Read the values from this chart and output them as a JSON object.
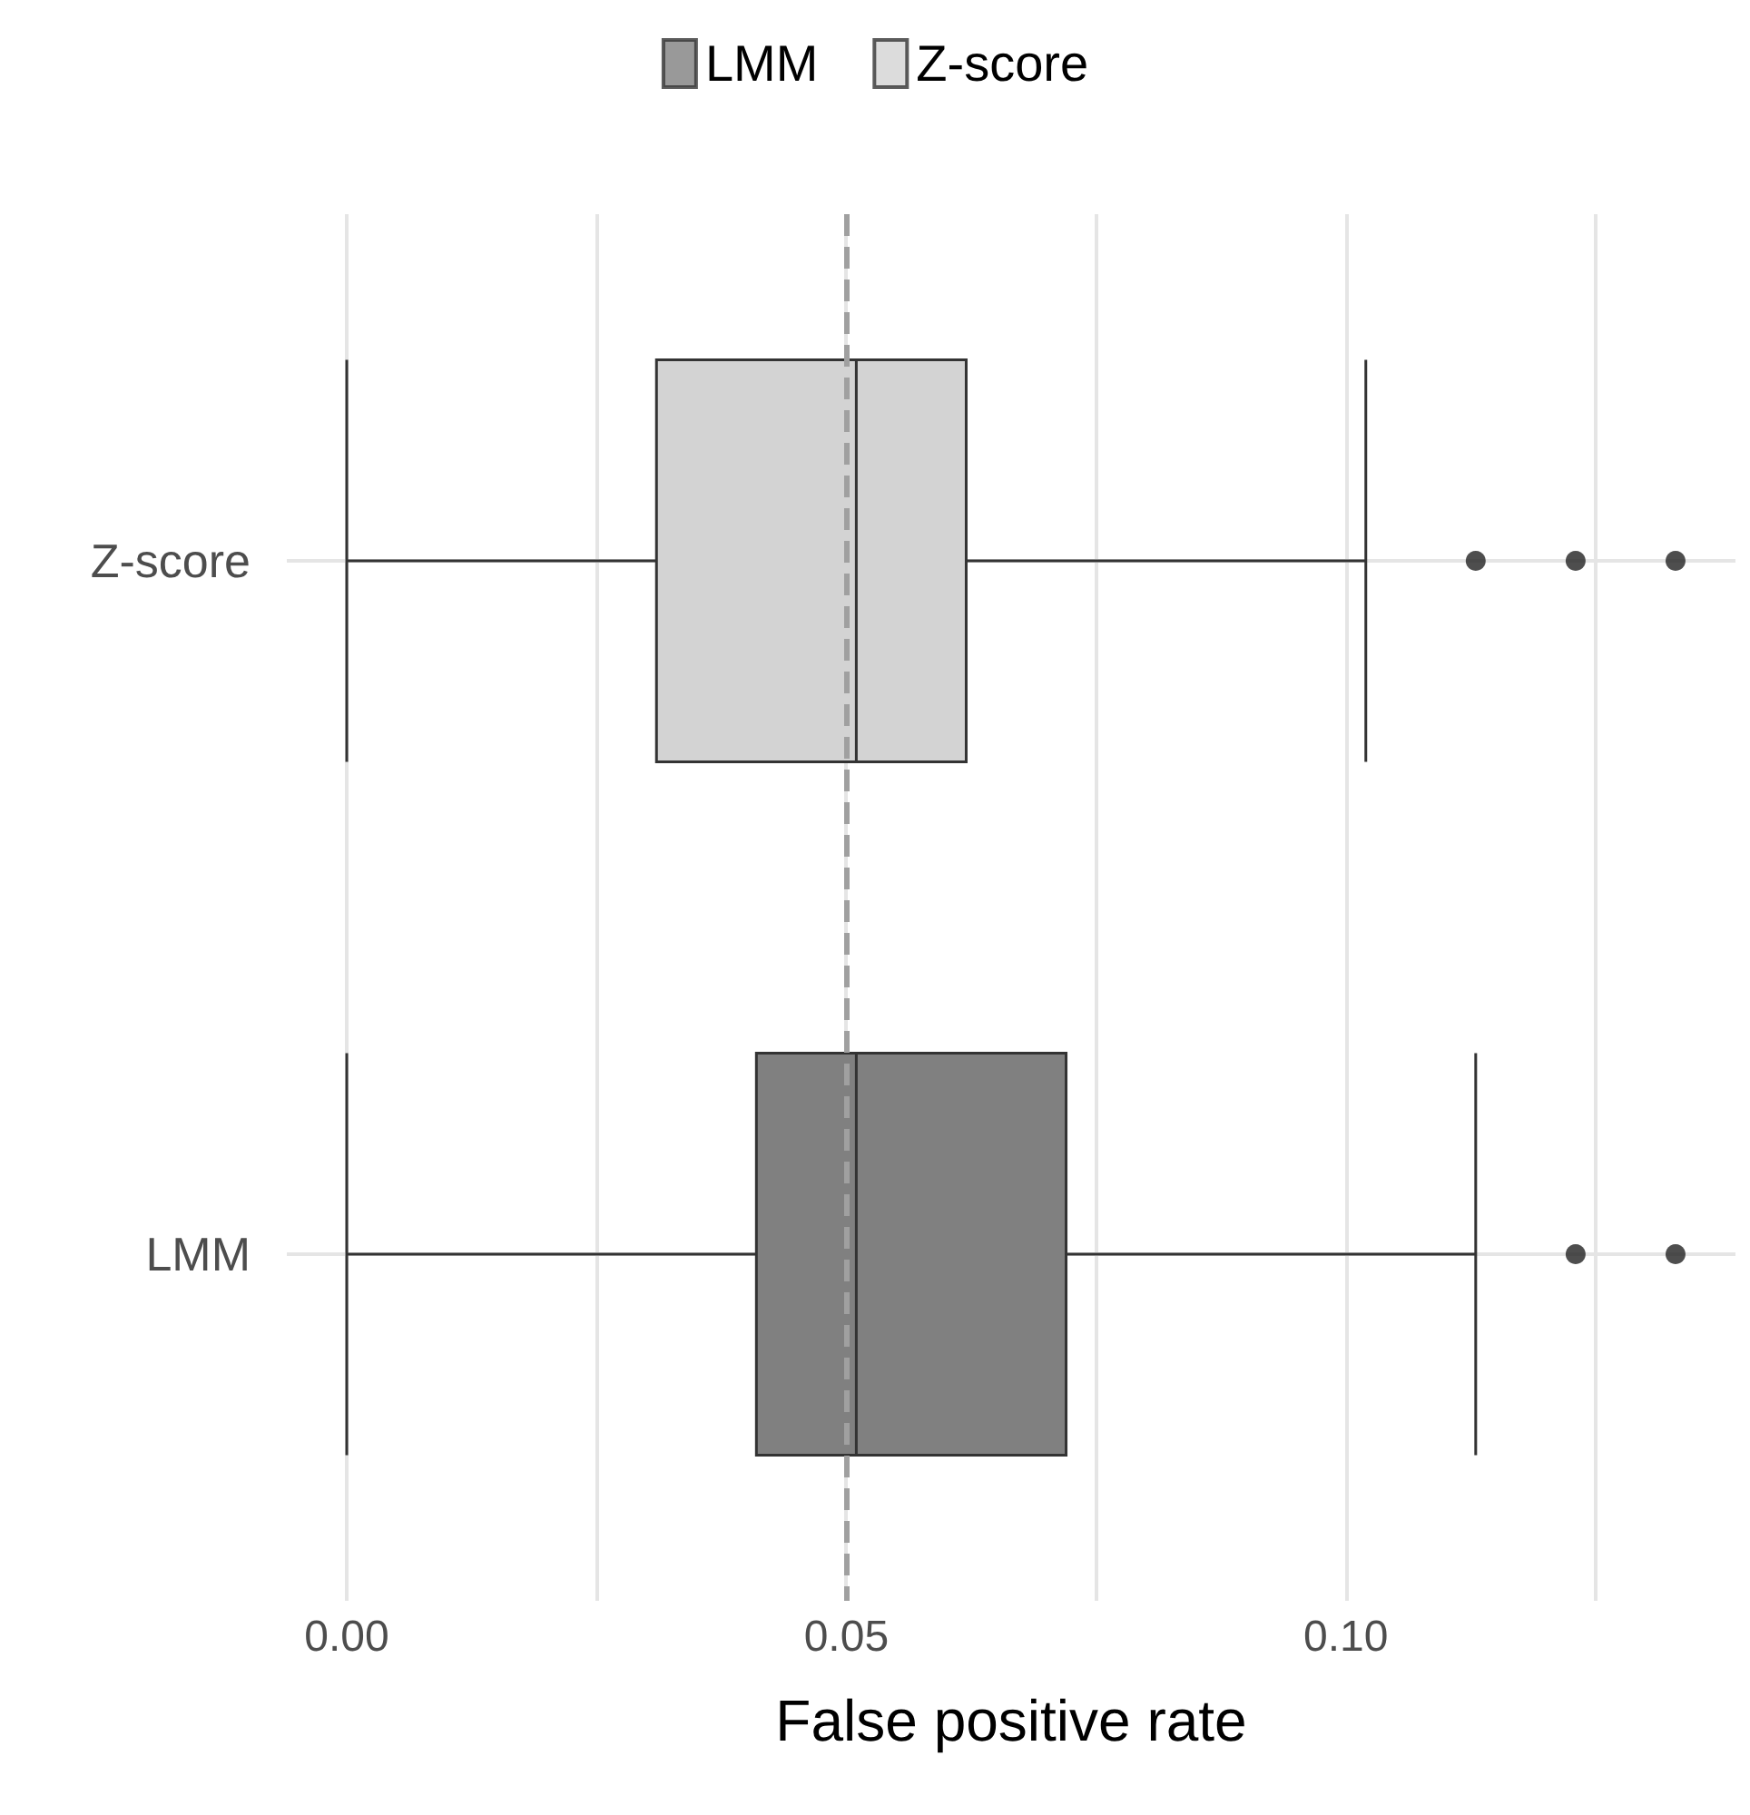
{
  "chart_data": {
    "type": "box",
    "orientation": "horizontal",
    "xlabel": "False positive rate",
    "categories": [
      "Z-score",
      "LMM"
    ],
    "series": [
      {
        "name": "LMM",
        "color": "#808080",
        "boxes": [
          null,
          {
            "low": 0,
            "q1": 0.041,
            "median": 0.051,
            "q3": 0.072,
            "high": 0.113,
            "outliers": [
              0.123,
              0.133
            ]
          }
        ]
      },
      {
        "name": "Z-score",
        "color": "#d3d3d3",
        "boxes": [
          {
            "low": 0,
            "q1": 0.031,
            "median": 0.051,
            "q3": 0.062,
            "high": 0.102,
            "outliers": [
              0.113,
              0.123,
              0.133
            ]
          },
          null
        ]
      }
    ],
    "xlim": [
      -0.006,
      0.139
    ],
    "xticks": [
      {
        "value": 0,
        "label": "0.00"
      },
      {
        "value": 0.025,
        "label": null
      },
      {
        "value": 0.05,
        "label": "0.05"
      },
      {
        "value": 0.075,
        "label": null
      },
      {
        "value": 0.1,
        "label": "0.10"
      },
      {
        "value": 0.125,
        "label": null
      }
    ],
    "ref_lines": [
      {
        "axis": "x",
        "value": 0.05,
        "label": null,
        "color": "#a0a0a0",
        "line_style": "dashed"
      }
    ],
    "grid": true,
    "legend": "top"
  }
}
